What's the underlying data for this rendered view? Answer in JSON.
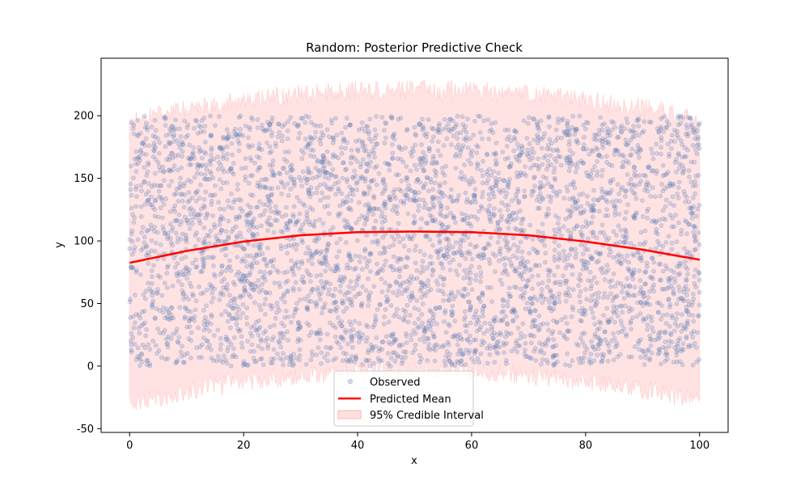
{
  "chart_data": {
    "type": "scatter",
    "title": "Random: Posterior Predictive Check",
    "xlabel": "x",
    "ylabel": "y",
    "xlim": [
      -5,
      105
    ],
    "ylim": [
      -53,
      246
    ],
    "x_ticks": [
      0,
      20,
      40,
      60,
      80,
      100
    ],
    "y_ticks": [
      -50,
      0,
      50,
      100,
      150,
      200
    ],
    "grid": false,
    "legend_position": "bottom-center",
    "legend": [
      "Observed",
      "Predicted Mean",
      "95% Credible Interval"
    ],
    "series": [
      {
        "name": "Observed",
        "kind": "scatter",
        "color": "#4c72b0",
        "x_range": [
          0,
          100
        ],
        "y_range": [
          0,
          200
        ],
        "distribution": "uniform random"
      },
      {
        "name": "Predicted Mean",
        "kind": "line",
        "color": "#ff0000",
        "x": [
          0,
          10,
          20,
          30,
          40,
          50,
          60,
          70,
          80,
          90,
          100
        ],
        "y": [
          82.5,
          92,
          99.5,
          104.5,
          107,
          107.5,
          107,
          104.5,
          99.5,
          93,
          85
        ]
      },
      {
        "name": "95% Credible Interval",
        "kind": "band",
        "color": "#ffcccc",
        "x": [
          0,
          10,
          20,
          30,
          40,
          50,
          60,
          70,
          80,
          90,
          100
        ],
        "lower": [
          -30,
          -20,
          -12,
          -7,
          -4,
          -3,
          -4,
          -7,
          -12,
          -19,
          -28
        ],
        "upper": [
          195,
          205,
          212,
          217,
          220,
          221,
          220,
          217,
          212,
          206,
          198
        ]
      }
    ]
  }
}
